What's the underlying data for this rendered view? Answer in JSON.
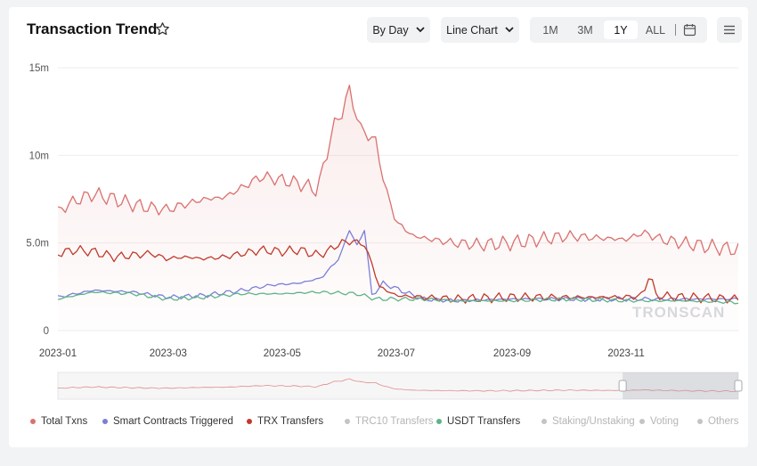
{
  "header": {
    "title": "Transaction Trend"
  },
  "toolbar": {
    "group_by": "By Day",
    "chart_type": "Line Chart",
    "ranges": [
      "1M",
      "3M",
      "1Y",
      "ALL"
    ],
    "active_range": "1Y"
  },
  "colors": {
    "total": "#d9716f",
    "smart": "#7b7fd8",
    "trx": "#c0392b",
    "usdt": "#5db38a",
    "muted": "#c4c4c4"
  },
  "watermark": "TRONSCAN",
  "chart_data": {
    "type": "line",
    "xlabel": "",
    "ylabel": "",
    "x_range": [
      "2023-01-01",
      "2023-12-31"
    ],
    "x_ticks": [
      "2023-01",
      "2023-03",
      "2023-05",
      "2023-07",
      "2023-09",
      "2023-11"
    ],
    "ylim": [
      0,
      15000000
    ],
    "y_ticks": [
      {
        "value": 0,
        "label": "0"
      },
      {
        "value": 5000000,
        "label": "5.0m"
      },
      {
        "value": 10000000,
        "label": "10m"
      },
      {
        "value": 15000000,
        "label": "15m"
      }
    ],
    "grid": true,
    "legend_position": "bottom",
    "series": [
      {
        "name": "Total Txns",
        "color": "#d9716f",
        "area": true,
        "points": [
          [
            "2023-01-01",
            6.8
          ],
          [
            "2023-01-10",
            7.4
          ],
          [
            "2023-01-20",
            7.8
          ],
          [
            "2023-01-31",
            7.5
          ],
          [
            "2023-02-10",
            7.2
          ],
          [
            "2023-02-20",
            7.0
          ],
          [
            "2023-02-28",
            6.9
          ],
          [
            "2023-03-10",
            7.2
          ],
          [
            "2023-03-20",
            7.5
          ],
          [
            "2023-03-31",
            7.6
          ],
          [
            "2023-04-10",
            8.2
          ],
          [
            "2023-04-20",
            8.8
          ],
          [
            "2023-04-30",
            8.6
          ],
          [
            "2023-05-10",
            8.4
          ],
          [
            "2023-05-20",
            8.0
          ],
          [
            "2023-05-28",
            11.5
          ],
          [
            "2023-06-02",
            12.5
          ],
          [
            "2023-06-06",
            13.7
          ],
          [
            "2023-06-12",
            11.5
          ],
          [
            "2023-06-20",
            10.8
          ],
          [
            "2023-06-25",
            8.2
          ],
          [
            "2023-07-01",
            6.2
          ],
          [
            "2023-07-10",
            5.4
          ],
          [
            "2023-07-20",
            5.2
          ],
          [
            "2023-08-01",
            5.0
          ],
          [
            "2023-08-15",
            4.9
          ],
          [
            "2023-09-01",
            5.0
          ],
          [
            "2023-09-15",
            5.2
          ],
          [
            "2023-10-01",
            5.4
          ],
          [
            "2023-10-15",
            5.3
          ],
          [
            "2023-11-01",
            5.2
          ],
          [
            "2023-11-10",
            5.6
          ],
          [
            "2023-11-20",
            5.2
          ],
          [
            "2023-12-01",
            5.0
          ],
          [
            "2023-12-15",
            4.8
          ],
          [
            "2023-12-31",
            4.6
          ]
        ]
      },
      {
        "name": "Smart Contracts Triggered",
        "color": "#7b7fd8",
        "area": false,
        "points": [
          [
            "2023-01-01",
            1.9
          ],
          [
            "2023-01-20",
            2.3
          ],
          [
            "2023-02-10",
            2.2
          ],
          [
            "2023-03-01",
            1.9
          ],
          [
            "2023-03-20",
            2.0
          ],
          [
            "2023-04-10",
            2.3
          ],
          [
            "2023-04-25",
            2.6
          ],
          [
            "2023-05-10",
            2.7
          ],
          [
            "2023-05-22",
            3.0
          ],
          [
            "2023-06-01",
            4.2
          ],
          [
            "2023-06-06",
            5.8
          ],
          [
            "2023-06-10",
            4.8
          ],
          [
            "2023-06-14",
            5.8
          ],
          [
            "2023-06-18",
            2.0
          ],
          [
            "2023-06-24",
            2.7
          ],
          [
            "2023-07-01",
            2.4
          ],
          [
            "2023-07-15",
            1.8
          ],
          [
            "2023-08-01",
            1.7
          ],
          [
            "2023-09-01",
            1.8
          ],
          [
            "2023-10-01",
            1.8
          ],
          [
            "2023-11-01",
            1.8
          ],
          [
            "2023-12-01",
            1.8
          ],
          [
            "2023-12-31",
            1.8
          ]
        ]
      },
      {
        "name": "TRX Transfers",
        "color": "#c0392b",
        "area": false,
        "points": [
          [
            "2023-01-01",
            4.4
          ],
          [
            "2023-01-10",
            4.6
          ],
          [
            "2023-01-20",
            4.5
          ],
          [
            "2023-01-31",
            4.2
          ],
          [
            "2023-02-10",
            4.3
          ],
          [
            "2023-02-20",
            4.4
          ],
          [
            "2023-02-28",
            4.1
          ],
          [
            "2023-03-10",
            4.2
          ],
          [
            "2023-03-20",
            4.1
          ],
          [
            "2023-03-31",
            4.2
          ],
          [
            "2023-04-10",
            4.4
          ],
          [
            "2023-04-20",
            4.6
          ],
          [
            "2023-04-30",
            4.5
          ],
          [
            "2023-05-10",
            4.6
          ],
          [
            "2023-05-20",
            4.3
          ],
          [
            "2023-05-25",
            4.5
          ],
          [
            "2023-06-01",
            5.0
          ],
          [
            "2023-06-08",
            5.1
          ],
          [
            "2023-06-14",
            4.9
          ],
          [
            "2023-06-18",
            3.8
          ],
          [
            "2023-06-22",
            2.5
          ],
          [
            "2023-07-01",
            2.0
          ],
          [
            "2023-07-15",
            1.9
          ],
          [
            "2023-08-01",
            1.8
          ],
          [
            "2023-09-01",
            1.9
          ],
          [
            "2023-10-01",
            1.9
          ],
          [
            "2023-11-01",
            1.9
          ],
          [
            "2023-11-10",
            2.0
          ],
          [
            "2023-11-14",
            3.5
          ],
          [
            "2023-11-16",
            2.0
          ],
          [
            "2023-12-01",
            1.9
          ],
          [
            "2023-12-31",
            1.8
          ]
        ]
      },
      {
        "name": "USDT Transfers",
        "color": "#5db38a",
        "area": false,
        "points": [
          [
            "2023-01-01",
            1.8
          ],
          [
            "2023-01-20",
            2.2
          ],
          [
            "2023-02-10",
            2.1
          ],
          [
            "2023-03-01",
            1.8
          ],
          [
            "2023-03-20",
            1.9
          ],
          [
            "2023-04-10",
            2.1
          ],
          [
            "2023-05-01",
            2.1
          ],
          [
            "2023-05-20",
            2.2
          ],
          [
            "2023-06-10",
            2.1
          ],
          [
            "2023-06-20",
            1.8
          ],
          [
            "2023-07-01",
            1.8
          ],
          [
            "2023-07-15",
            1.8
          ],
          [
            "2023-08-01",
            1.7
          ],
          [
            "2023-09-01",
            1.7
          ],
          [
            "2023-10-01",
            1.8
          ],
          [
            "2023-11-01",
            1.7
          ],
          [
            "2023-12-01",
            1.7
          ],
          [
            "2023-12-31",
            1.6
          ]
        ]
      }
    ],
    "legend": [
      {
        "name": "Total Txns",
        "color": "#d9716f",
        "active": true
      },
      {
        "name": "Smart Contracts Triggered",
        "color": "#7b7fd8",
        "active": true
      },
      {
        "name": "TRX Transfers",
        "color": "#c0392b",
        "active": true
      },
      {
        "name": "TRC10 Transfers",
        "color": "#c4c4c4",
        "active": false
      },
      {
        "name": "USDT Transfers",
        "color": "#5db38a",
        "active": true
      },
      {
        "name": "Staking/Unstaking",
        "color": "#c4c4c4",
        "active": false
      },
      {
        "name": "Voting",
        "color": "#c4c4c4",
        "active": false
      },
      {
        "name": "Others",
        "color": "#c4c4c4",
        "active": false
      }
    ],
    "data_zoom": {
      "start": 0.83,
      "end": 1.0
    }
  }
}
